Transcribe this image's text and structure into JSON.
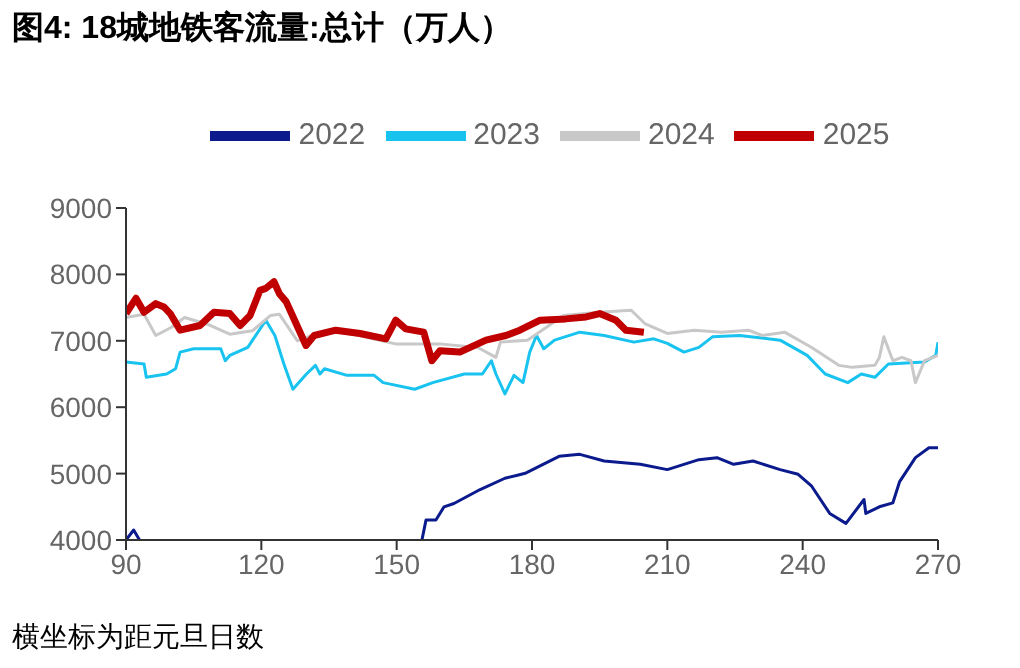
{
  "chart_data": {
    "type": "line",
    "title": "图4:  18城地铁客流量:总计（万人）",
    "annotations": [
      "横坐标为距元旦日数"
    ],
    "xlim": [
      90,
      270
    ],
    "xticks": [
      90,
      120,
      150,
      180,
      210,
      240,
      270
    ],
    "ylim": [
      4000,
      9000
    ],
    "yticks": [
      4000,
      5000,
      6000,
      7000,
      8000,
      9000
    ],
    "grid": false,
    "legend": "top",
    "marker": "none",
    "line_style": "solid",
    "series": [
      {
        "name": "2022",
        "color": "#0b1a8c",
        "x": [
          90,
          91.7,
          93,
          94,
          155.6,
          156.5,
          158.7,
          160.5,
          162.7,
          168.5,
          174,
          177,
          178.7,
          186,
          190.6,
          196,
          204,
          210,
          217,
          221,
          224.7,
          229,
          235,
          239,
          242,
          246,
          249.6,
          253.6,
          254,
          257,
          260,
          261.5,
          265,
          268,
          270
        ],
        "values": [
          4000,
          4150,
          4000,
          null,
          4000,
          4300,
          4300,
          4500,
          4550,
          4760,
          4930,
          4980,
          5010,
          5260,
          5290,
          5190,
          5140,
          5060,
          5210,
          5240,
          5140,
          5190,
          5060,
          4990,
          4810,
          4400,
          4250,
          4610,
          4400,
          4500,
          4560,
          4880,
          5240,
          5390,
          5390
        ]
      },
      {
        "name": "2023",
        "color": "#19c3f0",
        "x": [
          90,
          94,
          94.5,
          99,
          101,
          102,
          105,
          111,
          112,
          113,
          117,
          121,
          123,
          125,
          127,
          130,
          132,
          133,
          134,
          139,
          145,
          147,
          154,
          158,
          165,
          169,
          171,
          172,
          174,
          176,
          178,
          179.5,
          181,
          182.6,
          185,
          190.6,
          196,
          202.6,
          207,
          210,
          213.7,
          217,
          220,
          226,
          235,
          241,
          245,
          250,
          253,
          256,
          259,
          267,
          269.5,
          270
        ],
        "values": [
          6680,
          6650,
          6450,
          6500,
          6580,
          6830,
          6880,
          6880,
          6700,
          6780,
          6900,
          7310,
          7080,
          6650,
          6270,
          6500,
          6630,
          6500,
          6580,
          6480,
          6480,
          6370,
          6270,
          6370,
          6500,
          6500,
          6700,
          6500,
          6200,
          6480,
          6370,
          6830,
          7080,
          6880,
          7010,
          7130,
          7080,
          6980,
          7030,
          6960,
          6830,
          6900,
          7060,
          7080,
          7010,
          6780,
          6500,
          6370,
          6500,
          6450,
          6650,
          6680,
          6780,
          6980
        ]
      },
      {
        "name": "2024",
        "color": "#c8c8c8",
        "x": [
          90,
          94,
          96.6,
          100,
          103,
          108,
          113,
          118,
          122,
          124,
          128,
          132,
          136,
          140,
          150,
          160,
          168,
          172,
          173,
          179,
          187,
          195,
          202,
          205,
          210,
          216,
          222,
          228,
          231,
          236,
          242,
          248,
          251,
          256,
          257,
          258,
          260,
          262,
          264,
          265,
          267,
          270
        ],
        "values": [
          7350,
          7400,
          7080,
          7200,
          7350,
          7250,
          7100,
          7150,
          7380,
          7400,
          7000,
          7100,
          7150,
          7100,
          6950,
          6950,
          6900,
          6750,
          6980,
          7010,
          7380,
          7430,
          7460,
          7260,
          7110,
          7160,
          7130,
          7160,
          7080,
          7130,
          6900,
          6630,
          6600,
          6630,
          6750,
          7060,
          6700,
          6750,
          6700,
          6370,
          6700,
          6780
        ]
      },
      {
        "name": "2025",
        "color": "#c00000",
        "x": [
          90,
          92.2,
          94,
          96.6,
          98.4,
          99.8,
          102,
          106.4,
          109.5,
          113,
          115.3,
          117.5,
          119.7,
          121,
          122.8,
          124,
          125.5,
          127.7,
          129.9,
          131.7,
          136.5,
          141.9,
          147.6,
          149.8,
          152,
          156,
          157.8,
          159.6,
          164,
          169.8,
          174.2,
          177.3,
          181.8,
          187.5,
          192,
          195,
          198.6,
          200.8,
          204.8
        ],
        "values": [
          7410,
          7640,
          7430,
          7560,
          7510,
          7410,
          7160,
          7230,
          7430,
          7410,
          7230,
          7380,
          7760,
          7790,
          7890,
          7710,
          7590,
          7260,
          6930,
          7080,
          7160,
          7110,
          7030,
          7310,
          7180,
          7130,
          6700,
          6850,
          6830,
          7010,
          7080,
          7160,
          7310,
          7330,
          7360,
          7410,
          7310,
          7160,
          7130
        ]
      }
    ]
  }
}
